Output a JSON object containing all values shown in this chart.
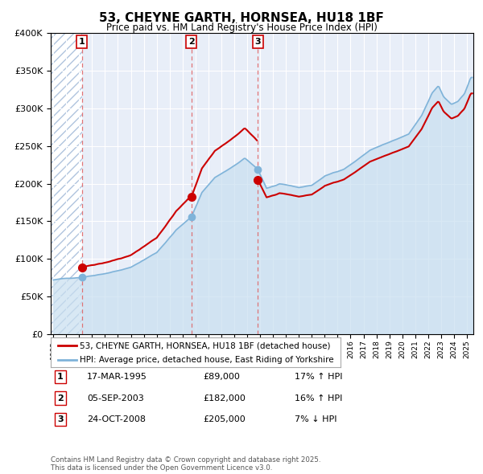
{
  "title": "53, CHEYNE GARTH, HORNSEA, HU18 1BF",
  "subtitle": "Price paid vs. HM Land Registry's House Price Index (HPI)",
  "sale_years": [
    1995.21,
    2003.68,
    2008.82
  ],
  "sale_prices": [
    89000,
    182000,
    205000
  ],
  "price_line_color": "#cc0000",
  "hpi_line_color": "#7fb3d9",
  "hpi_fill_color": "#c8dff0",
  "vline_color": "#e06060",
  "marker_color": "#cc0000",
  "hpi_marker_color": "#7fb3d9",
  "label1": "53, CHEYNE GARTH, HORNSEA, HU18 1BF (detached house)",
  "label2": "HPI: Average price, detached house, East Riding of Yorkshire",
  "transaction1_date": "17-MAR-1995",
  "transaction1_price": "£89,000",
  "transaction1_hpi": "17% ↑ HPI",
  "transaction2_date": "05-SEP-2003",
  "transaction2_price": "£182,000",
  "transaction2_hpi": "16% ↑ HPI",
  "transaction3_date": "24-OCT-2008",
  "transaction3_price": "£205,000",
  "transaction3_hpi": "7% ↓ HPI",
  "footer": "Contains HM Land Registry data © Crown copyright and database right 2025.\nThis data is licensed under the Open Government Licence v3.0.",
  "ylim": [
    0,
    400000
  ],
  "xlim_start": 1992.8,
  "xlim_end": 2025.5,
  "chart_bg": "#e8eef8",
  "hatch_color": "#b0c4de",
  "grid_color": "#ffffff"
}
